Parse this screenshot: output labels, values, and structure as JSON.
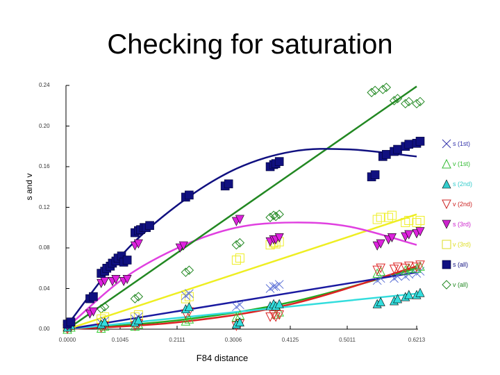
{
  "title": "Checking for saturation",
  "chart_data": {
    "type": "scatter",
    "title": "Checking for saturation",
    "xlabel": "F84 distance",
    "ylabel": "s and v",
    "ylim": [
      0.0,
      0.24
    ],
    "yticks": [
      "0.00",
      "0.04",
      "0.08",
      "0.12",
      "0.16",
      "0.20",
      "0.24"
    ],
    "xticks": [
      "0.0000",
      "0.1045",
      "0.2111",
      "0.3006",
      "0.4125",
      "0.5011",
      "0.6213"
    ],
    "grid": false,
    "legend_position": "right",
    "series": [
      {
        "name": "s (1st)",
        "marker": "x",
        "color": "#5a6fd6",
        "fit": "line",
        "fit_color": "#1a1aa0",
        "x": [
          0.0,
          0.06,
          0.12,
          0.21,
          0.3,
          0.36,
          0.37,
          0.55,
          0.58,
          0.6,
          0.62
        ],
        "y": [
          0.003,
          0.006,
          0.01,
          0.033,
          0.022,
          0.04,
          0.042,
          0.048,
          0.05,
          0.052,
          0.055
        ]
      },
      {
        "name": "v (1st)",
        "marker": "triangle-open",
        "color": "#33cc33",
        "fit": "curve",
        "fit_color": "#22aa22",
        "x": [
          0.0,
          0.06,
          0.12,
          0.21,
          0.3,
          0.37,
          0.55,
          0.6,
          0.62
        ],
        "y": [
          0.0,
          0.001,
          0.003,
          0.008,
          0.012,
          0.015,
          0.055,
          0.058,
          0.06
        ]
      },
      {
        "name": "s (2nd)",
        "marker": "triangle-filled",
        "color": "#33dddd",
        "fit": "line",
        "fit_color": "#33dddd",
        "x": [
          0.0,
          0.06,
          0.12,
          0.21,
          0.3,
          0.36,
          0.37,
          0.55,
          0.58,
          0.6,
          0.62
        ],
        "y": [
          0.002,
          0.005,
          0.007,
          0.02,
          0.005,
          0.023,
          0.023,
          0.025,
          0.028,
          0.032,
          0.034
        ]
      },
      {
        "name": "v (2nd)",
        "marker": "triangle-down-open",
        "color": "#dd2222",
        "fit": "curve",
        "fit_color": "#dd2222",
        "x": [
          0.0,
          0.06,
          0.12,
          0.21,
          0.3,
          0.36,
          0.37,
          0.55,
          0.58,
          0.6,
          0.62
        ],
        "y": [
          0.0,
          0.001,
          0.003,
          0.015,
          0.003,
          0.012,
          0.012,
          0.058,
          0.059,
          0.06,
          0.061
        ]
      },
      {
        "name": "s (3rd)",
        "marker": "triangle-down-filled",
        "color": "#dd22dd",
        "fit": "curve",
        "fit_color": "#e040e0",
        "x": [
          0.0,
          0.04,
          0.06,
          0.08,
          0.1,
          0.12,
          0.2,
          0.3,
          0.36,
          0.37,
          0.55,
          0.57,
          0.6,
          0.62
        ],
        "y": [
          0.003,
          0.015,
          0.045,
          0.047,
          0.047,
          0.082,
          0.08,
          0.106,
          0.086,
          0.088,
          0.082,
          0.088,
          0.091,
          0.094
        ]
      },
      {
        "name": "v (3rd)",
        "marker": "square-open",
        "color": "#eeee22",
        "fit": "line",
        "fit_color": "#eeee22",
        "x": [
          0.0,
          0.06,
          0.12,
          0.21,
          0.3,
          0.36,
          0.37,
          0.55,
          0.57,
          0.6,
          0.62
        ],
        "y": [
          0.002,
          0.01,
          0.012,
          0.03,
          0.068,
          0.083,
          0.084,
          0.108,
          0.11,
          0.105,
          0.105
        ]
      },
      {
        "name": "s (all)",
        "marker": "square-filled",
        "color": "#101080",
        "fit": "curve",
        "fit_color": "#101080",
        "x": [
          0.0,
          0.04,
          0.06,
          0.07,
          0.08,
          0.09,
          0.1,
          0.12,
          0.13,
          0.14,
          0.21,
          0.28,
          0.36,
          0.37,
          0.54,
          0.56,
          0.58,
          0.6,
          0.62
        ],
        "y": [
          0.005,
          0.03,
          0.055,
          0.06,
          0.065,
          0.07,
          0.066,
          0.095,
          0.098,
          0.1,
          0.13,
          0.141,
          0.16,
          0.163,
          0.15,
          0.17,
          0.175,
          0.18,
          0.183
        ]
      },
      {
        "name": "v (all)",
        "marker": "diamond-open",
        "color": "#228822",
        "fit": "line",
        "fit_color": "#228822",
        "x": [
          0.0,
          0.06,
          0.12,
          0.21,
          0.3,
          0.36,
          0.37,
          0.54,
          0.56,
          0.58,
          0.6,
          0.62
        ],
        "y": [
          0.002,
          0.02,
          0.03,
          0.056,
          0.083,
          0.11,
          0.111,
          0.233,
          0.236,
          0.225,
          0.222,
          0.222
        ]
      }
    ],
    "fits": {
      "s (all)": {
        "x": [
          0.0,
          0.1,
          0.2,
          0.3,
          0.4,
          0.5,
          0.62
        ],
        "y": [
          0.004,
          0.075,
          0.124,
          0.158,
          0.175,
          0.177,
          0.17
        ]
      },
      "v (all)": {
        "x": [
          0.0,
          0.62
        ],
        "y": [
          0.0,
          0.239
        ]
      },
      "s (3rd)": {
        "x": [
          0.0,
          0.1,
          0.2,
          0.3,
          0.4,
          0.5,
          0.62
        ],
        "y": [
          0.002,
          0.05,
          0.081,
          0.1,
          0.105,
          0.101,
          0.083
        ]
      },
      "v (3rd)": {
        "x": [
          0.0,
          0.62
        ],
        "y": [
          0.0,
          0.113
        ]
      },
      "s (1st)": {
        "x": [
          0.0,
          0.62
        ],
        "y": [
          0.0,
          0.056
        ]
      },
      "s (2nd)": {
        "x": [
          0.0,
          0.62
        ],
        "y": [
          0.0,
          0.035
        ]
      },
      "v (2nd)": {
        "x": [
          0.0,
          0.2,
          0.4,
          0.62
        ],
        "y": [
          0.0,
          0.007,
          0.025,
          0.062
        ]
      },
      "v (1st)": {
        "x": [
          0.0,
          0.2,
          0.4,
          0.62
        ],
        "y": [
          0.0,
          0.009,
          0.027,
          0.06
        ]
      }
    }
  },
  "legend": [
    {
      "label": "s (1st)",
      "color": "#3333aa",
      "marker": "x"
    },
    {
      "label": "v (1st)",
      "color": "#33bb33",
      "marker": "triangle-open"
    },
    {
      "label": "s (2nd)",
      "color": "#33cccc",
      "marker": "triangle-filled"
    },
    {
      "label": "v (2nd)",
      "color": "#cc2222",
      "marker": "triangle-down-open"
    },
    {
      "label": "s (3rd)",
      "color": "#cc22cc",
      "marker": "triangle-down-filled"
    },
    {
      "label": "v (3rd)",
      "color": "#dddd22",
      "marker": "square-open"
    },
    {
      "label": "s (all)",
      "color": "#101080",
      "marker": "square-filled"
    },
    {
      "label": "v (all)",
      "color": "#228822",
      "marker": "diamond-open"
    }
  ]
}
